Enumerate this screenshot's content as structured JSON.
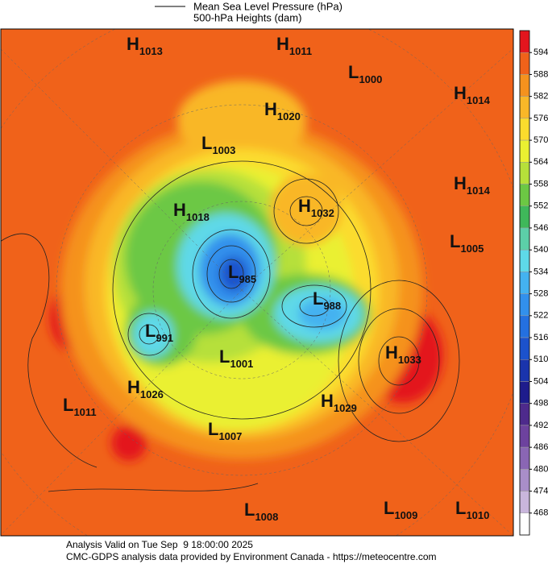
{
  "legend": {
    "items": [
      "Mean Sea Level Pressure (hPa)",
      "500-hPa Heights (dam)"
    ]
  },
  "centers": [
    {
      "type": "H",
      "value": 1013
    },
    {
      "type": "H",
      "value": 1011
    },
    {
      "type": "L",
      "value": 1000
    },
    {
      "type": "H",
      "value": 1014
    },
    {
      "type": "H",
      "value": 1020
    },
    {
      "type": "L",
      "value": 1003
    },
    {
      "type": "H",
      "value": 1014
    },
    {
      "type": "H",
      "value": 1032
    },
    {
      "type": "H",
      "value": 1018
    },
    {
      "type": "L",
      "value": 1005
    },
    {
      "type": "L",
      "value": 985
    },
    {
      "type": "L",
      "value": 988
    },
    {
      "type": "L",
      "value": 991
    },
    {
      "type": "H",
      "value": 1033
    },
    {
      "type": "L",
      "value": 1001
    },
    {
      "type": "H",
      "value": 1026
    },
    {
      "type": "H",
      "value": 1029
    },
    {
      "type": "L",
      "value": 1011
    },
    {
      "type": "L",
      "value": 1007
    },
    {
      "type": "L",
      "value": 1008
    },
    {
      "type": "L",
      "value": 1009
    },
    {
      "type": "L",
      "value": 1010
    }
  ],
  "colorbar": {
    "ticks": [
      594,
      588,
      582,
      576,
      570,
      564,
      558,
      552,
      546,
      540,
      534,
      528,
      522,
      516,
      510,
      504,
      498,
      492,
      486,
      480,
      474,
      468
    ],
    "colors": [
      "#e3151e",
      "#f0621a",
      "#f5921e",
      "#f9b728",
      "#fbdc2d",
      "#eaf031",
      "#b6e03a",
      "#6cc844",
      "#3fb85a",
      "#5ccfa8",
      "#5ed9e8",
      "#44b2f0",
      "#3290ec",
      "#2470e0",
      "#1c52cc",
      "#1a34ac",
      "#1e1c8c",
      "#4e2a8c",
      "#6d429e",
      "#8a66b4",
      "#a98ec8",
      "#c9b6dc",
      "#ffffff"
    ]
  },
  "footer": {
    "valid": "Analysis Valid on Tue Sep  9 18:00:00 2025",
    "source": "CMC-GDPS analysis data provided by Environment Canada - https://meteocentre.com"
  }
}
